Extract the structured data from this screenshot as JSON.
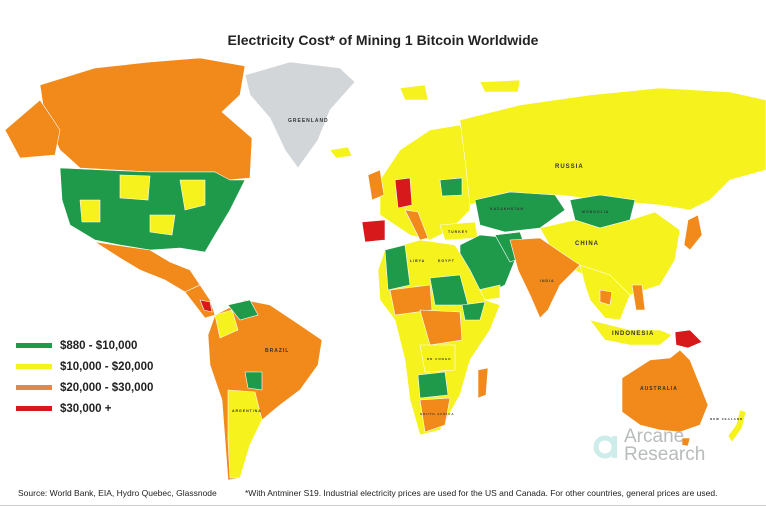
{
  "title": "Electricity Cost* of Mining 1 Bitcoin Worldwide",
  "legend": [
    {
      "label": "$880 - $10,000",
      "color": "#1e9a4a"
    },
    {
      "label": "$10,000 - $20,000",
      "color": "#f5f21e"
    },
    {
      "label": "$20,000 - $30,000",
      "color": "#f28a1b"
    },
    {
      "label": "$30,000 +",
      "color": "#d7191c"
    }
  ],
  "no_data_color": "#d3d6d8",
  "map_labels": {
    "greenland": "GREENLAND",
    "russia": "RUSSIA",
    "china": "CHINA",
    "kazakhstan": "KAZAKHSTAN",
    "mongolia": "MONGOLIA",
    "turkey": "TURKEY",
    "libya": "LIBYA",
    "egypt": "EGYPT",
    "india": "INDIA",
    "brazil": "BRAZIL",
    "argentina": "ARGENTINA",
    "australia": "AUSTRALIA",
    "indonesia": "INDONESIA",
    "new_zealand": "NEW ZEALAND",
    "south_africa": "SOUTH AFRICA",
    "dr_congo": "DR CONGO"
  },
  "logo": {
    "line1": "Arcane",
    "line2": "Research"
  },
  "source": "Source: World Bank, EIA, Hydro Quebec, Glassnode",
  "footnote": "*With Antminer S19. Industrial electricity prices are used for the US and Canada. For other countries, general prices are used."
}
